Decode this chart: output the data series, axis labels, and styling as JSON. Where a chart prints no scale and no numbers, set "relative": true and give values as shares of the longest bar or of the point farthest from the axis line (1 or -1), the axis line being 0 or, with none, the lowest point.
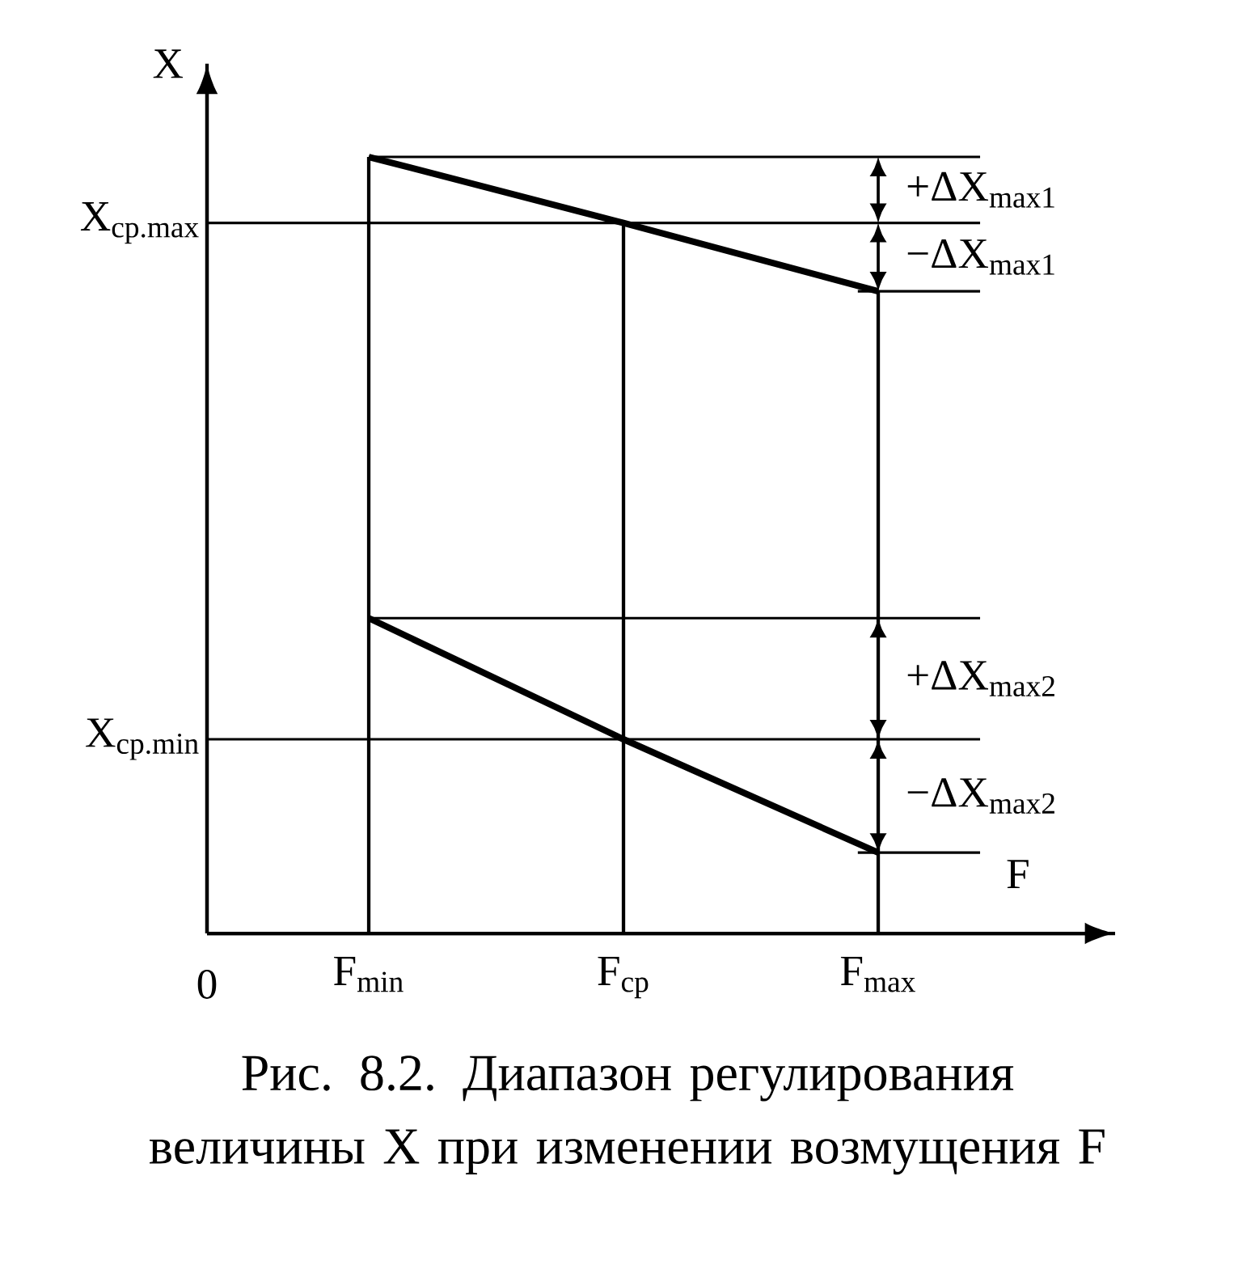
{
  "chart_data": {
    "type": "line",
    "relative": true,
    "xlabel": "F",
    "ylabel": "X",
    "grid": "x",
    "categories": [
      "F$_{min}$",
      "F$_{ср}$",
      "F$_{max}$"
    ],
    "series": [
      {
        "color": "#000000",
        "values": [
          1,
          0.915,
          0.827
        ]
      },
      {
        "color": "#000000",
        "values": [
          0.406,
          0.25,
          0.104
        ]
      }
    ],
    "ref_lines": [
      {
        "axis": "y",
        "value": 0.915,
        "label": "X$_{ср.max}$"
      },
      {
        "axis": "y",
        "value": 0.25,
        "label": "X$_{ср.min}$"
      }
    ],
    "annotations": [
      "0",
      "Рис. 8.2. Диапазон регулирования величины X при изменении возмущения F",
      "+ΔX$_{max1}$",
      "−ΔX$_{max1}$",
      "+ΔX$_{max2}$",
      "−ΔX$_{max2}$"
    ],
    "marker": "none",
    "line_style": "solid"
  }
}
